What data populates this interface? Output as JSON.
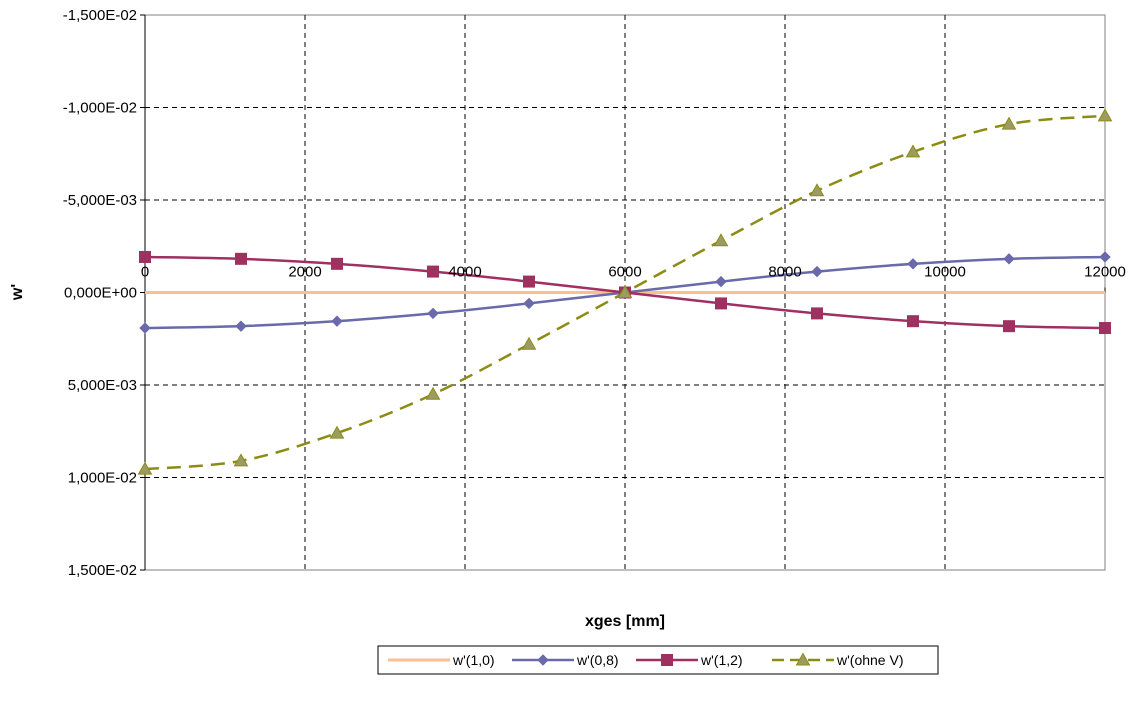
{
  "chart_data": {
    "type": "line",
    "title": "",
    "xlabel": "xges   [mm]",
    "ylabel": "w'",
    "xlim": [
      0,
      12000
    ],
    "ylim": [
      -0.015,
      0.015
    ],
    "y_inverted": true,
    "grid": true,
    "legend_position": "bottom",
    "x_ticks": [
      0,
      2000,
      4000,
      6000,
      8000,
      10000,
      12000
    ],
    "x_tick_labels": [
      "0",
      "2000",
      "4000",
      "6000",
      "8000",
      "10000",
      "12000"
    ],
    "y_ticks": [
      -0.015,
      -0.01,
      -0.005,
      0,
      0.005,
      0.01,
      0.015
    ],
    "y_tick_labels": [
      "-1,500E-02",
      "-1,000E-02",
      "-5,000E-03",
      "0,000E+00",
      "5,000E-03",
      "1,000E-02",
      "1,500E-02"
    ],
    "series": [
      {
        "name": "w'(1,0)",
        "color": "#FAC090",
        "marker": "none",
        "dash": "solid",
        "x": [
          0,
          12000
        ],
        "values": [
          0,
          0
        ]
      },
      {
        "name": "w'(0,8)",
        "color": "#6A6AAA",
        "marker": "diamond",
        "dash": "solid",
        "x": [
          0,
          1200,
          2400,
          3600,
          4800,
          6000,
          7200,
          8400,
          9600,
          10800,
          12000
        ],
        "values": [
          0.00192,
          0.00182,
          0.00155,
          0.00113,
          0.00059,
          0,
          -0.00059,
          -0.00113,
          -0.00155,
          -0.00182,
          -0.00192
        ]
      },
      {
        "name": "w'(1,2)",
        "color": "#A03060",
        "marker": "square",
        "dash": "solid",
        "x": [
          0,
          1200,
          2400,
          3600,
          4800,
          6000,
          7200,
          8400,
          9600,
          10800,
          12000
        ],
        "values": [
          -0.00192,
          -0.00182,
          -0.00155,
          -0.00113,
          -0.00059,
          0,
          0.00059,
          0.00113,
          0.00155,
          0.00182,
          0.00192
        ]
      },
      {
        "name": "w'(ohne V)",
        "color": "#8C8C14",
        "marker": "triangle",
        "dash": "dashed",
        "x": [
          0,
          1200,
          2400,
          3600,
          4800,
          6000,
          7200,
          8400,
          9600,
          10800,
          12000
        ],
        "values": [
          0.00955,
          0.0091,
          0.0076,
          0.0055,
          0.0028,
          0,
          -0.0028,
          -0.0055,
          -0.0076,
          -0.0091,
          -0.00955
        ]
      }
    ]
  }
}
